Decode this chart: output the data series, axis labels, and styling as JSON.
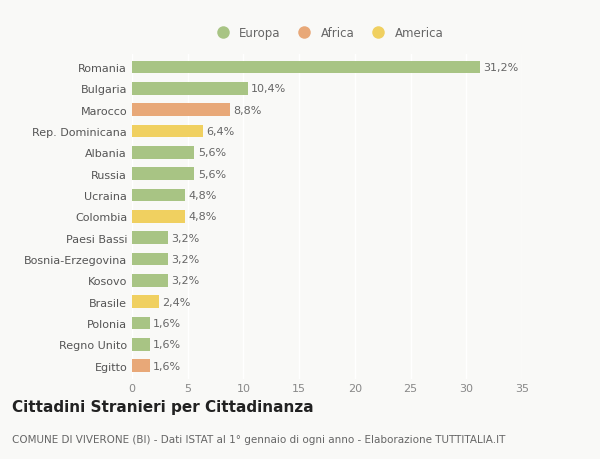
{
  "countries": [
    "Romania",
    "Bulgaria",
    "Marocco",
    "Rep. Dominicana",
    "Albania",
    "Russia",
    "Ucraina",
    "Colombia",
    "Paesi Bassi",
    "Bosnia-Erzegovina",
    "Kosovo",
    "Brasile",
    "Polonia",
    "Regno Unito",
    "Egitto"
  ],
  "values": [
    31.2,
    10.4,
    8.8,
    6.4,
    5.6,
    5.6,
    4.8,
    4.8,
    3.2,
    3.2,
    3.2,
    2.4,
    1.6,
    1.6,
    1.6
  ],
  "labels": [
    "31,2%",
    "10,4%",
    "8,8%",
    "6,4%",
    "5,6%",
    "5,6%",
    "4,8%",
    "4,8%",
    "3,2%",
    "3,2%",
    "3,2%",
    "2,4%",
    "1,6%",
    "1,6%",
    "1,6%"
  ],
  "continents": [
    "Europa",
    "Europa",
    "Africa",
    "America",
    "Europa",
    "Europa",
    "Europa",
    "America",
    "Europa",
    "Europa",
    "Europa",
    "America",
    "Europa",
    "Europa",
    "Africa"
  ],
  "colors": {
    "Europa": "#a8c484",
    "Africa": "#e8a878",
    "America": "#f0d060"
  },
  "background_color": "#f9f9f7",
  "bar_height": 0.6,
  "xlim": [
    0,
    35
  ],
  "xticks": [
    0,
    5,
    10,
    15,
    20,
    25,
    30,
    35
  ],
  "legend_labels": [
    "Europa",
    "Africa",
    "America"
  ],
  "title": "Cittadini Stranieri per Cittadinanza",
  "subtitle": "COMUNE DI VIVERONE (BI) - Dati ISTAT al 1° gennaio di ogni anno - Elaborazione TUTTITALIA.IT",
  "title_fontsize": 11,
  "subtitle_fontsize": 7.5,
  "label_fontsize": 8,
  "tick_fontsize": 8
}
